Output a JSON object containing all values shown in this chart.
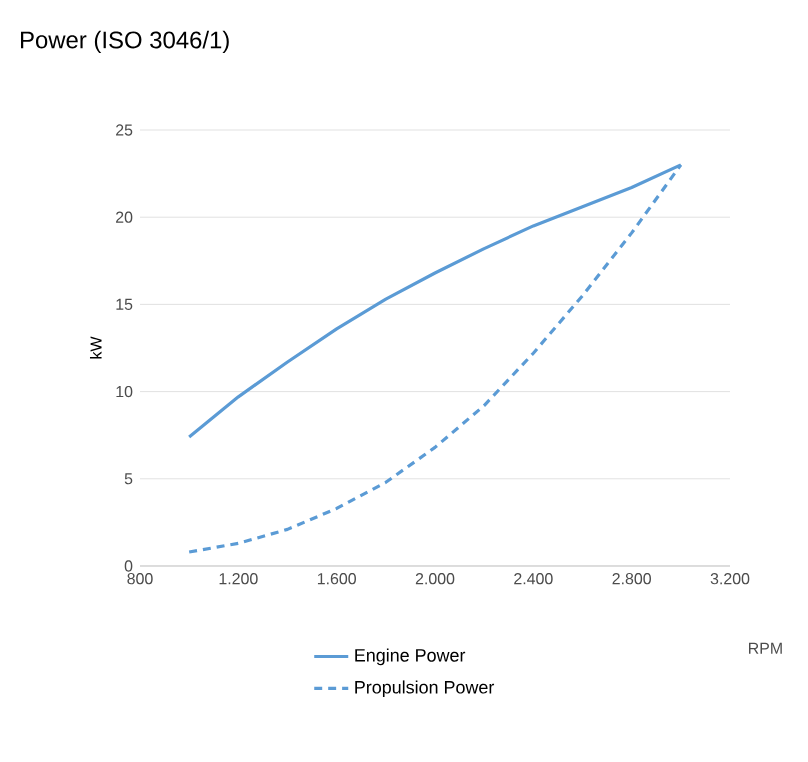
{
  "chart_data": {
    "type": "line",
    "title": "Power (ISO 3046/1)",
    "xlabel": "RPM",
    "ylabel": "kW",
    "x": [
      1000,
      1200,
      1400,
      1600,
      1800,
      2000,
      2200,
      2400,
      2600,
      2800,
      3000
    ],
    "series": [
      {
        "name": "Engine Power",
        "color": "#5b9bd5",
        "line_style": "solid",
        "values": [
          7.4,
          9.7,
          11.7,
          13.6,
          15.3,
          16.8,
          18.2,
          19.5,
          20.6,
          21.7,
          23.0
        ]
      },
      {
        "name": "Propulsion Power",
        "color": "#5b9bd5",
        "line_style": "dashed",
        "values": [
          0.8,
          1.3,
          2.1,
          3.3,
          4.8,
          6.8,
          9.2,
          12.2,
          15.5,
          19.1,
          23.0
        ]
      }
    ],
    "xlim": [
      800,
      3200
    ],
    "ylim": [
      0,
      25
    ],
    "xticks": [
      800,
      {
        "value": 1200,
        "label": "1.200"
      },
      {
        "value": 1600,
        "label": "1.600"
      },
      {
        "value": 2000,
        "label": "2.000"
      },
      {
        "value": 2400,
        "label": "2.400"
      },
      {
        "value": 2800,
        "label": "2.800"
      },
      {
        "value": 3200,
        "label": "3.200"
      }
    ],
    "yticks": [
      0,
      5,
      10,
      15,
      20,
      25
    ],
    "grid": "y",
    "legend": "bottom"
  }
}
